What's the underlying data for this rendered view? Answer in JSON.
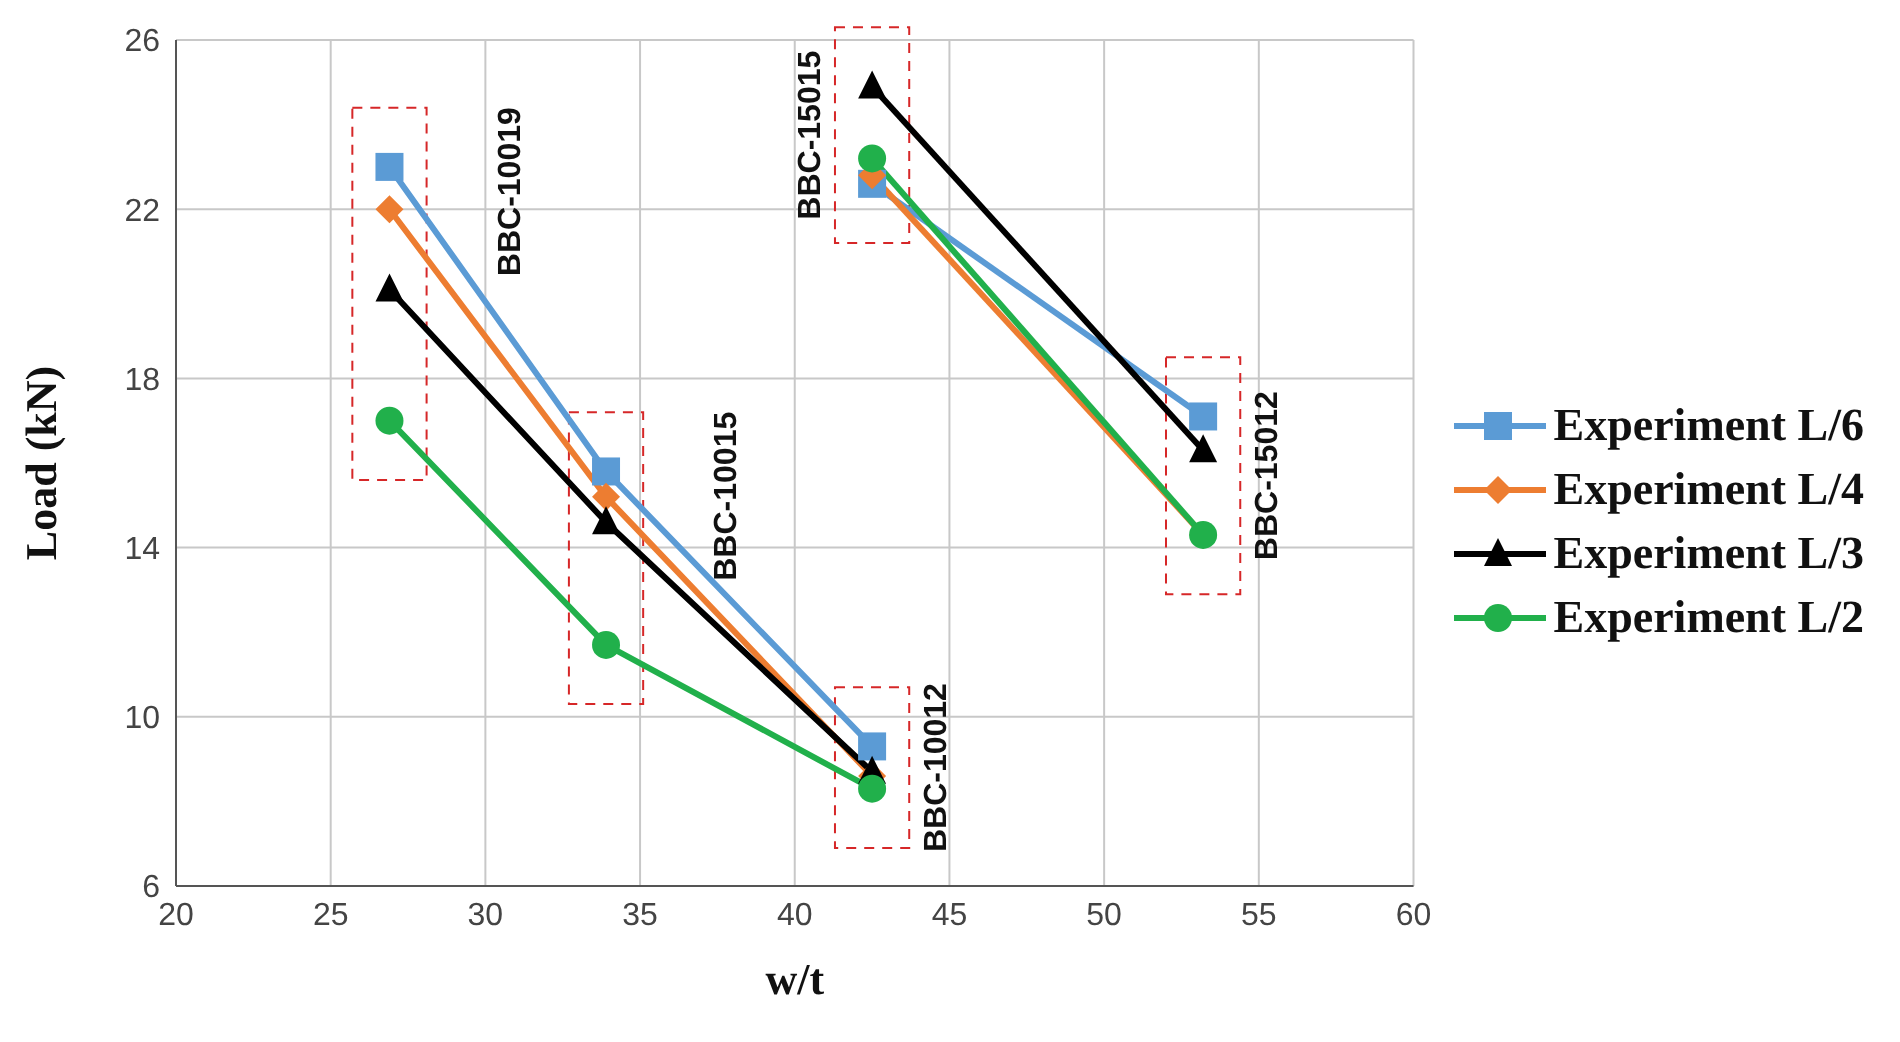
{
  "chart_data": {
    "type": "line",
    "xlabel": "w/t",
    "ylabel": "Load (kN)",
    "x": [
      26.9,
      33.9,
      42.5,
      42.5,
      53.2
    ],
    "series": [
      {
        "name": "Experiment L/6",
        "color": "#5b9bd5",
        "marker": "square",
        "values": [
          23.0,
          15.8,
          9.3,
          22.6,
          17.1
        ]
      },
      {
        "name": "Experiment L/4",
        "color": "#ed7d31",
        "marker": "diamond",
        "values": [
          22.0,
          15.2,
          8.6,
          22.8,
          14.3
        ]
      },
      {
        "name": "Experiment L/3",
        "color": "#000000",
        "marker": "triangle",
        "values": [
          20.1,
          14.6,
          8.7,
          24.9,
          16.3
        ]
      },
      {
        "name": "Experiment L/2",
        "color": "#21b04b",
        "marker": "circle",
        "values": [
          17.0,
          11.7,
          8.3,
          23.2,
          14.3
        ]
      }
    ],
    "annotations": [
      "BBC-10019",
      "BBC-10015",
      "BBC-10012",
      "BBC-15015",
      "BBC-15012"
    ],
    "xlim": [
      20,
      60
    ],
    "xticks": [
      20,
      25,
      30,
      35,
      40,
      45,
      50,
      55,
      60
    ],
    "ylim": [
      6,
      26
    ],
    "yticks": [
      6,
      10,
      14,
      18,
      22,
      26
    ],
    "grid": true,
    "legend": "right"
  }
}
